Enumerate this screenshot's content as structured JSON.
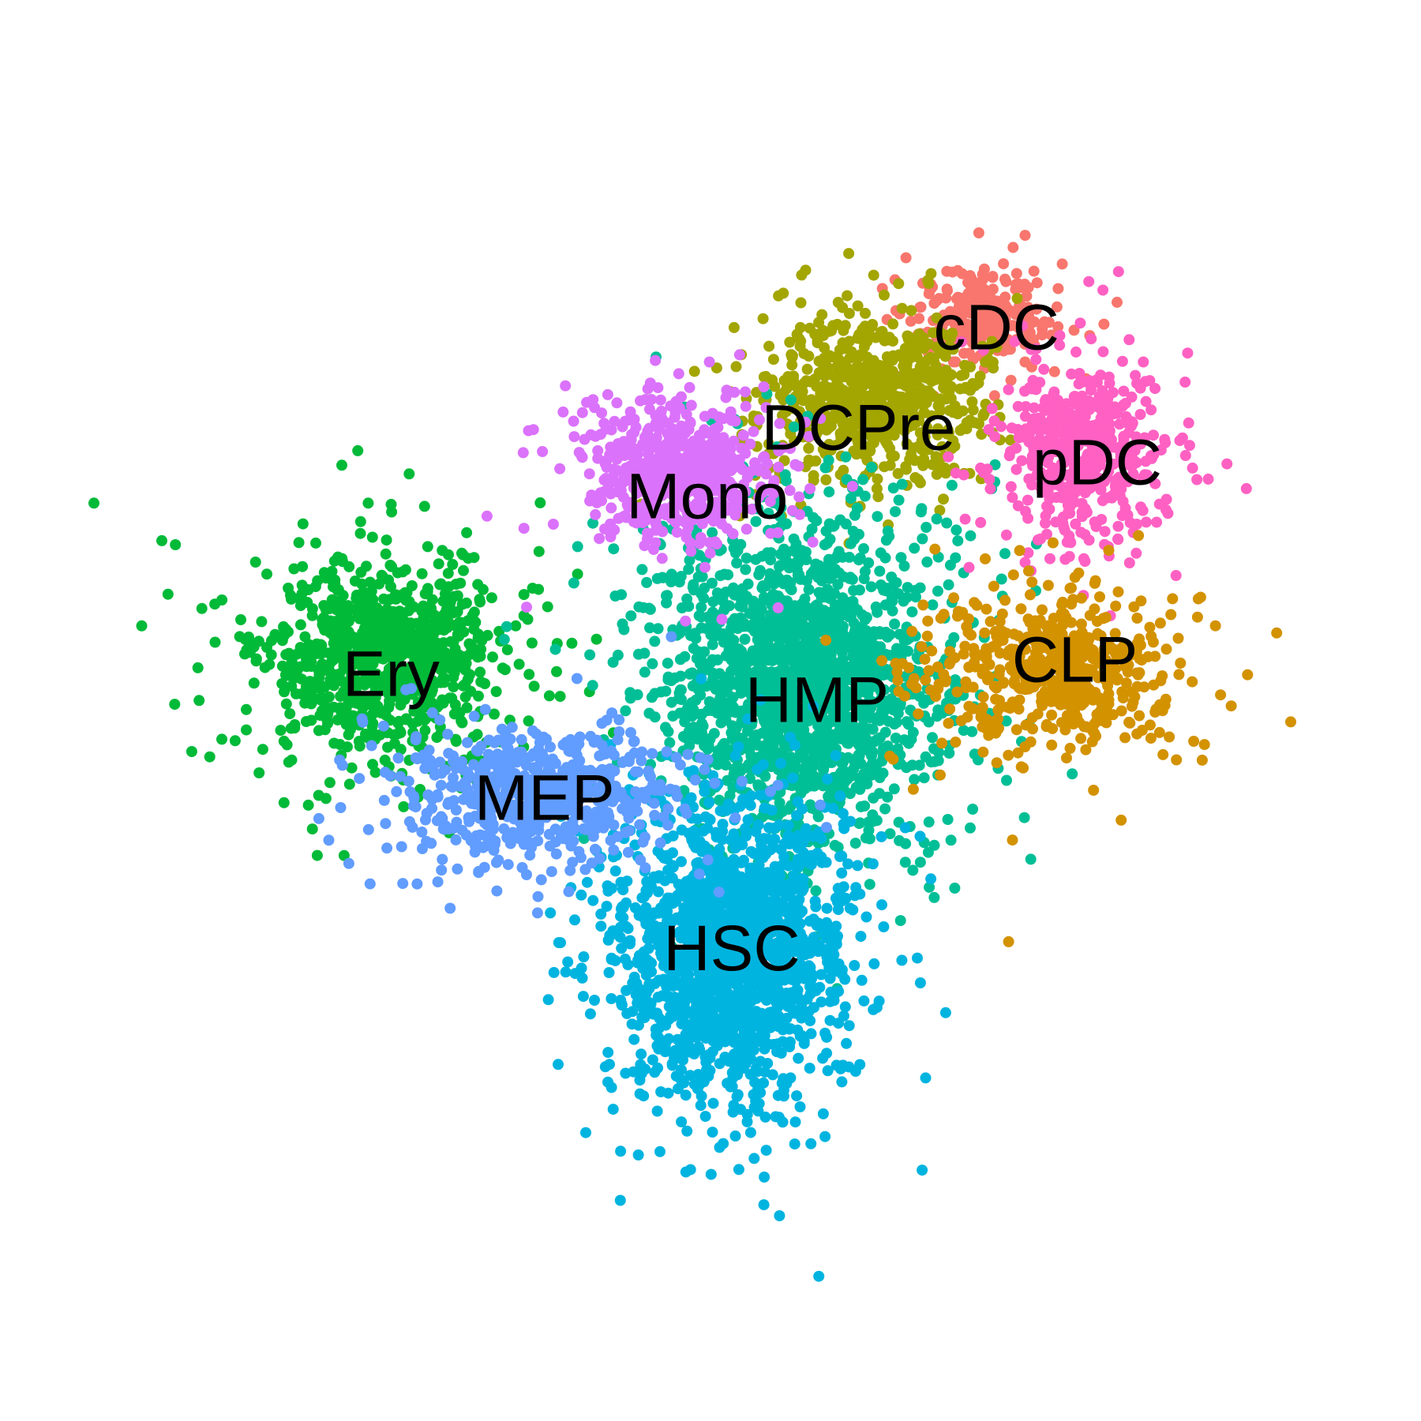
{
  "chart_data": {
    "type": "scatter",
    "title": "",
    "xlabel": "",
    "ylabel": "",
    "grid": false,
    "axes_visible": false,
    "legend": "none",
    "xlim": [
      0,
      100
    ],
    "ylim": [
      0,
      100
    ],
    "clusters": [
      {
        "name": "cDC",
        "color": "#F8766D",
        "center": [
          73.8,
          85.5
        ],
        "spread": [
          5.5,
          4.0
        ],
        "n": 260,
        "label_pos": [
          74.8,
          84.0
        ]
      },
      {
        "name": "DCPre",
        "color": "#A3A500",
        "center": [
          63.5,
          78.0
        ],
        "spread": [
          9.0,
          7.0
        ],
        "n": 700,
        "label_pos": [
          62.5,
          74.8
        ]
      },
      {
        "name": "Ery",
        "color": "#00BA38",
        "center": [
          20.0,
          54.0
        ],
        "spread": [
          9.5,
          8.5
        ],
        "n": 900,
        "label_pos": [
          20.8,
          52.2
        ]
      },
      {
        "name": "HMP",
        "color": "#00BF96",
        "center": [
          57.5,
          52.0
        ],
        "spread": [
          11.0,
          13.0
        ],
        "n": 1900,
        "label_pos": [
          58.8,
          49.8
        ]
      },
      {
        "name": "HSC",
        "color": "#00B4E0",
        "center": [
          51.0,
          27.0
        ],
        "spread": [
          9.0,
          12.0
        ],
        "n": 1700,
        "label_pos": [
          51.2,
          27.0
        ]
      },
      {
        "name": "MEP",
        "color": "#619CFF",
        "center": [
          33.5,
          41.5
        ],
        "spread": [
          11.0,
          5.5
        ],
        "n": 650,
        "label_pos": [
          34.5,
          40.8
        ]
      },
      {
        "name": "Mono",
        "color": "#DB72FB",
        "center": [
          46.5,
          71.0
        ],
        "spread": [
          7.5,
          5.5
        ],
        "n": 650,
        "label_pos": [
          49.0,
          68.5
        ]
      },
      {
        "name": "pDC",
        "color": "#FF61C3",
        "center": [
          82.5,
          73.0
        ],
        "spread": [
          6.5,
          7.5
        ],
        "n": 500,
        "label_pos": [
          83.8,
          71.6
        ]
      },
      {
        "name": "CLP",
        "color": "#D39200",
        "center": [
          80.5,
          53.0
        ],
        "spread": [
          10.0,
          6.5
        ],
        "n": 550,
        "label_pos": [
          81.8,
          53.5
        ]
      }
    ]
  }
}
